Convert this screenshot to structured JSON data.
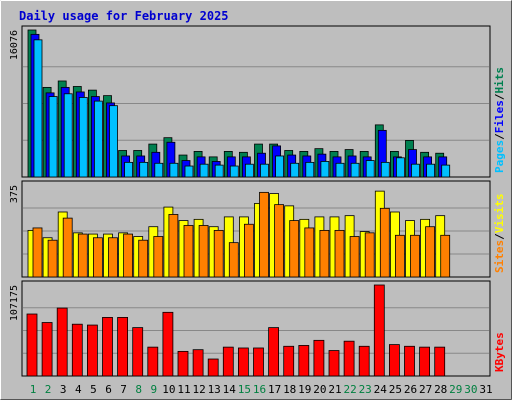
{
  "title": "Daily usage for February 2025",
  "colors": {
    "background": "#bebebe",
    "title": "#0000d0",
    "day_weekday": "#000000",
    "day_weekend": "#008040",
    "grid": "#888888",
    "plot_border": "#000000",
    "hits": "#008050",
    "files": "#0000ff",
    "pages": "#00c0ff",
    "visits": "#ffff00",
    "sites": "#ff8000",
    "kbytes": "#ff0000"
  },
  "legend_top": [
    {
      "name": "Pages",
      "color": "#00c0ff"
    },
    {
      "name": "Files",
      "color": "#0000ff"
    },
    {
      "name": "Hits",
      "color": "#008050"
    }
  ],
  "legend_mid": [
    {
      "name": "Sites",
      "color": "#ff8000"
    },
    {
      "name": "Visits",
      "color": "#ffff00"
    }
  ],
  "legend_bottom": [
    {
      "name": "KBytes",
      "color": "#ff0000"
    }
  ],
  "chart_data": {
    "type": "bar",
    "title": "Daily usage for February 2025",
    "days": [
      "1",
      "2",
      "3",
      "4",
      "5",
      "6",
      "7",
      "8",
      "9",
      "10",
      "11",
      "12",
      "13",
      "14",
      "15",
      "16",
      "17",
      "18",
      "19",
      "20",
      "21",
      "22",
      "23",
      "24",
      "25",
      "26",
      "27",
      "28",
      "29",
      "30",
      "31"
    ],
    "weekend_days": [
      "1",
      "2",
      "8",
      "9",
      "15",
      "16",
      "22",
      "23",
      "29",
      "30"
    ],
    "panels": [
      {
        "id": "hits_files_pages",
        "ymax_label": "16076",
        "ylim": [
          0,
          16076
        ],
        "series": [
          {
            "name": "Hits",
            "values": [
              16076,
              9800,
              10500,
              9900,
              9500,
              8900,
              2900,
              2900,
              3600,
              4300,
              2400,
              2800,
              2200,
              2800,
              2700,
              3600,
              3600,
              2900,
              2800,
              3100,
              2800,
              3000,
              2800,
              5700,
              2800,
              4000,
              2700,
              2600
            ]
          },
          {
            "name": "Files",
            "values": [
              15600,
              9200,
              9800,
              9300,
              8800,
              8100,
              2300,
              2300,
              2700,
              3800,
              1800,
              2200,
              1700,
              2200,
              2200,
              2600,
              3400,
              2400,
              2300,
              2500,
              2200,
              2300,
              2200,
              5100,
              2200,
              3000,
              2200,
              2200
            ]
          },
          {
            "name": "Pages",
            "values": [
              15000,
              8800,
              9100,
              8700,
              8300,
              7800,
              1600,
              1600,
              1500,
              1500,
              1200,
              1400,
              1300,
              1200,
              1400,
              1400,
              2300,
              1500,
              1600,
              1700,
              1500,
              1500,
              1800,
              1600,
              2100,
              1400,
              1400,
              1300
            ]
          }
        ]
      },
      {
        "id": "visits_sites",
        "ymax_label": "375",
        "ylim": [
          0,
          375
        ],
        "series": [
          {
            "name": "Visits",
            "values": [
              190,
              160,
              265,
              180,
              175,
              175,
              180,
              165,
              205,
              285,
              230,
              235,
              205,
              245,
              245,
              300,
              340,
              290,
              235,
              245,
              245,
              250,
              185,
              350,
              265,
              230,
              235,
              250
            ]
          },
          {
            "name": "Sites",
            "values": [
              200,
              150,
              240,
              175,
              160,
              160,
              175,
              150,
              165,
              255,
              210,
              210,
              190,
              140,
              215,
              345,
              295,
              230,
              200,
              190,
              190,
              165,
              180,
              280,
              170,
              170,
              205,
              170
            ]
          }
        ]
      },
      {
        "id": "kbytes",
        "ymax_label": "107175",
        "ylim": [
          0,
          107175
        ],
        "series": [
          {
            "name": "KBytes",
            "values": [
              73000,
              63000,
              80000,
              61000,
              60000,
              69000,
              69000,
              57000,
              34000,
              75000,
              29000,
              31000,
              20000,
              34000,
              33000,
              33000,
              57000,
              35000,
              36000,
              42000,
              30000,
              41000,
              35000,
              107175,
              37000,
              35000,
              34000,
              34000
            ]
          }
        ]
      }
    ]
  }
}
